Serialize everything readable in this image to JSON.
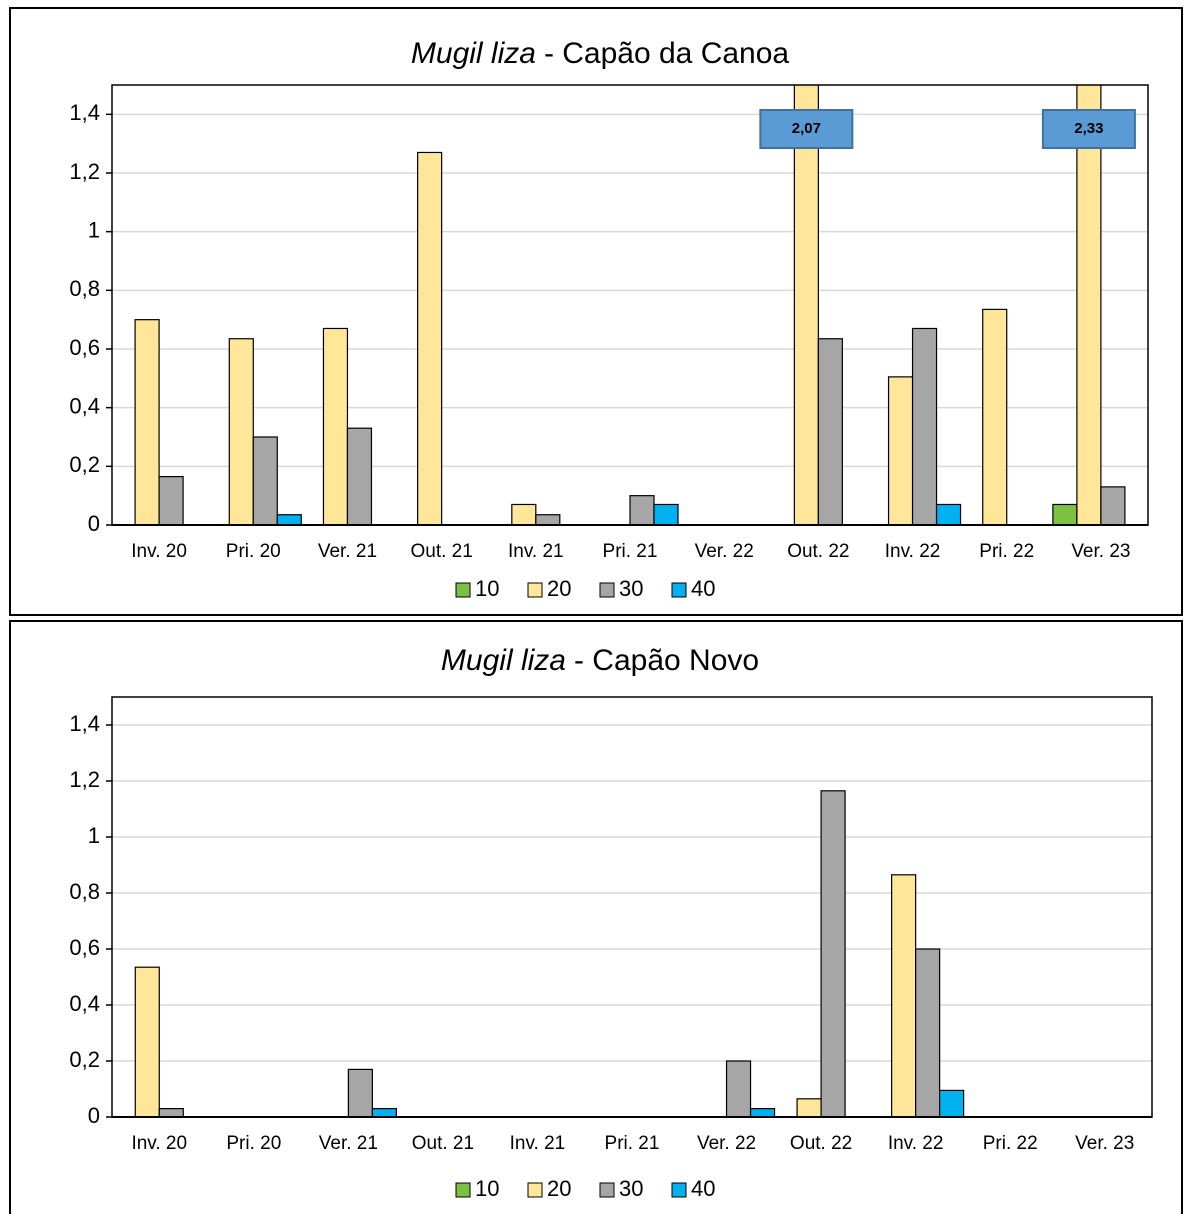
{
  "chart_data": [
    {
      "type": "bar",
      "title": [
        "Mugil liza",
        "- Capão da Canoa"
      ],
      "categories": [
        "Inv. 20",
        "Pri. 20",
        "Ver. 21",
        "Out. 21",
        "Inv. 21",
        "Pri. 21",
        "Ver. 22",
        "Out. 22",
        "Inv. 22",
        "Pri. 22",
        "Ver. 23"
      ],
      "series": [
        {
          "name": "10",
          "color": "#7dc142",
          "values": [
            0,
            0,
            0,
            0,
            0,
            0,
            0,
            0,
            0,
            0,
            0.07
          ]
        },
        {
          "name": "20",
          "color": "#ffe699",
          "values": [
            0.7,
            0.635,
            0.67,
            1.27,
            0.07,
            0,
            0,
            2.07,
            0.505,
            0.735,
            2.33
          ],
          "value_labels": [
            null,
            null,
            null,
            null,
            null,
            null,
            null,
            "2,07",
            null,
            null,
            "2,33"
          ]
        },
        {
          "name": "30",
          "color": "#a6a6a6",
          "values": [
            0.165,
            0.3,
            0.33,
            0,
            0.035,
            0.1,
            0,
            0.635,
            0.67,
            0,
            0.13
          ]
        },
        {
          "name": "40",
          "color": "#00b0f0",
          "values": [
            0,
            0.035,
            0,
            0,
            0,
            0.07,
            0,
            0,
            0.07,
            0,
            0
          ]
        }
      ],
      "ylim": [
        0,
        1.5
      ],
      "yticks": [
        0,
        {
          "value": 0.2,
          "label": "0,2"
        },
        {
          "value": 0.4,
          "label": "0,4"
        },
        {
          "value": 0.6,
          "label": "0,6"
        },
        {
          "value": 0.8,
          "label": "0,8"
        },
        1,
        {
          "value": 1.2,
          "label": "1,2"
        },
        {
          "value": 1.4,
          "label": "1,4"
        }
      ],
      "grid": true,
      "legend": "bottom"
    },
    {
      "type": "bar",
      "title": [
        "Mugil liza",
        "- Capão Novo"
      ],
      "categories": [
        "Inv. 20",
        "Pri. 20",
        "Ver. 21",
        "Out. 21",
        "Inv. 21",
        "Pri. 21",
        "Ver. 22",
        "Out. 22",
        "Inv. 22",
        "Pri. 22",
        "Ver. 23"
      ],
      "series": [
        {
          "name": "10",
          "color": "#7dc142",
          "values": [
            0,
            0,
            0,
            0,
            0,
            0,
            0,
            0,
            0,
            0,
            0
          ]
        },
        {
          "name": "20",
          "color": "#ffe699",
          "values": [
            0.535,
            0,
            0,
            0,
            0,
            0,
            0,
            0.065,
            0.865,
            0,
            0
          ]
        },
        {
          "name": "30",
          "color": "#a6a6a6",
          "values": [
            0.03,
            0,
            0.17,
            0,
            0,
            0,
            0.2,
            1.165,
            0.6,
            0,
            0
          ]
        },
        {
          "name": "40",
          "color": "#00b0f0",
          "values": [
            0,
            0,
            0.03,
            0,
            0,
            0,
            0.03,
            0,
            0.095,
            0,
            0
          ]
        }
      ],
      "ylim": [
        0,
        1.5
      ],
      "yticks": [
        0,
        {
          "value": 0.2,
          "label": "0,2"
        },
        {
          "value": 0.4,
          "label": "0,4"
        },
        {
          "value": 0.6,
          "label": "0,6"
        },
        {
          "value": 0.8,
          "label": "0,8"
        },
        1,
        {
          "value": 1.2,
          "label": "1,2"
        },
        {
          "value": 1.4,
          "label": "1,4"
        }
      ],
      "grid": true,
      "legend": "bottom"
    }
  ]
}
